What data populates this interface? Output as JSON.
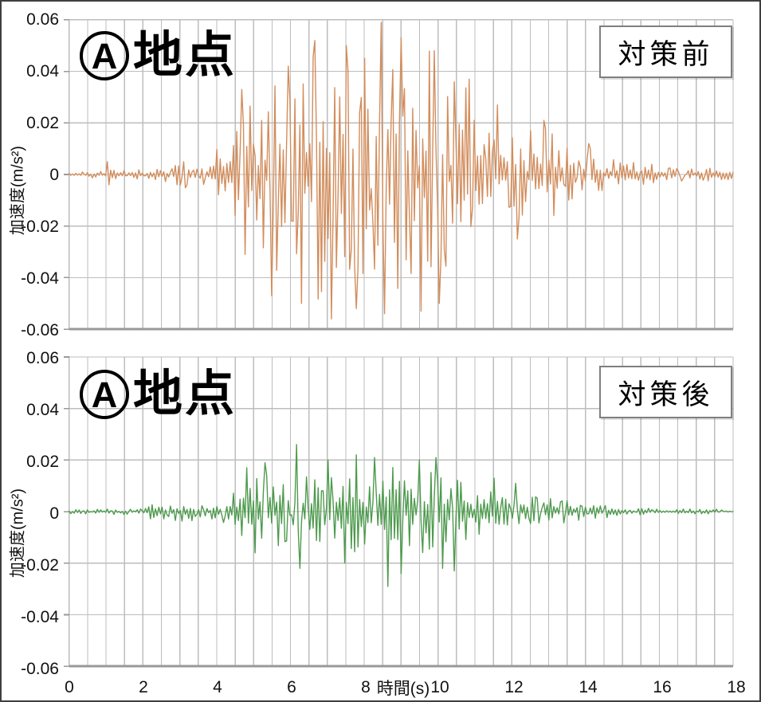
{
  "figure": {
    "background": "#ffffff",
    "frame_color": "#3f3f3f",
    "grid_color": "#bdbdbd",
    "axis_color": "#999999",
    "text_color": "#111111"
  },
  "chart_data": [
    {
      "id": "before",
      "type": "line",
      "subtype": "seismic-acceleration-waveform",
      "title_circle": "A",
      "title_text": "地点",
      "badge_label": "対策前",
      "series_color": "#d28d5c",
      "ylabel": "加速度(m/s²)",
      "xlim": [
        0,
        18
      ],
      "ylim": [
        -0.06,
        0.06
      ],
      "x_grid_step": 0.5,
      "y_grid_step": 0.02,
      "y_tick_labels": [
        "0.06",
        "0.04",
        "0.02",
        "0",
        "-0.02",
        "-0.04",
        "-0.06"
      ],
      "peak_positive": 0.059,
      "peak_positive_time": 8.45,
      "peak_negative": -0.056,
      "peak_negative_time": 7.1,
      "seed": 20231,
      "envelope": [
        [
          0,
          0.0012
        ],
        [
          0.9,
          0.0015
        ],
        [
          1.1,
          0.002
        ],
        [
          1.6,
          0.0018
        ],
        [
          2.2,
          0.0025
        ],
        [
          2.7,
          0.004
        ],
        [
          3.2,
          0.0055
        ],
        [
          3.7,
          0.0075
        ],
        [
          4.1,
          0.011
        ],
        [
          4.45,
          0.018
        ],
        [
          4.75,
          0.03
        ],
        [
          5.0,
          0.032
        ],
        [
          5.3,
          0.03
        ],
        [
          5.6,
          0.038
        ],
        [
          5.9,
          0.036
        ],
        [
          6.2,
          0.044
        ],
        [
          6.5,
          0.047
        ],
        [
          6.8,
          0.05
        ],
        [
          7.1,
          0.046
        ],
        [
          7.4,
          0.044
        ],
        [
          7.7,
          0.048
        ],
        [
          8.0,
          0.045
        ],
        [
          8.3,
          0.05
        ],
        [
          8.5,
          0.054
        ],
        [
          8.8,
          0.047
        ],
        [
          9.1,
          0.051
        ],
        [
          9.4,
          0.046
        ],
        [
          9.7,
          0.049
        ],
        [
          10.0,
          0.045
        ],
        [
          10.3,
          0.038
        ],
        [
          10.6,
          0.034
        ],
        [
          10.9,
          0.036
        ],
        [
          11.2,
          0.029
        ],
        [
          11.5,
          0.024
        ],
        [
          11.8,
          0.026
        ],
        [
          12.1,
          0.021
        ],
        [
          12.5,
          0.017
        ],
        [
          12.9,
          0.02
        ],
        [
          13.3,
          0.014
        ],
        [
          13.7,
          0.012
        ],
        [
          14.1,
          0.011
        ],
        [
          14.5,
          0.008
        ],
        [
          14.9,
          0.006
        ],
        [
          15.3,
          0.005
        ],
        [
          15.7,
          0.0045
        ],
        [
          16.1,
          0.0035
        ],
        [
          16.6,
          0.003
        ],
        [
          17.1,
          0.0027
        ],
        [
          17.6,
          0.0022
        ],
        [
          18,
          0.002
        ]
      ],
      "spikes": [
        [
          1.03,
          0.005
        ],
        [
          1.07,
          -0.004
        ],
        [
          4.7,
          0.033
        ],
        [
          4.78,
          -0.031
        ],
        [
          5.5,
          -0.047
        ],
        [
          5.95,
          0.042
        ],
        [
          6.3,
          -0.05
        ],
        [
          6.65,
          0.052
        ],
        [
          7.1,
          -0.056
        ],
        [
          7.5,
          0.05
        ],
        [
          7.8,
          -0.052
        ],
        [
          8.45,
          0.059
        ],
        [
          8.55,
          -0.054
        ],
        [
          9.0,
          0.053
        ],
        [
          9.55,
          -0.053
        ],
        [
          9.9,
          0.048
        ],
        [
          10.05,
          -0.05
        ],
        [
          10.85,
          0.037
        ],
        [
          11.6,
          0.027
        ],
        [
          12.15,
          -0.025
        ],
        [
          12.85,
          0.021
        ],
        [
          14.1,
          0.012
        ]
      ]
    },
    {
      "id": "after",
      "type": "line",
      "subtype": "seismic-acceleration-waveform",
      "title_circle": "A",
      "title_text": "地点",
      "badge_label": "対策後",
      "series_color": "#4d9a4d",
      "ylabel": "加速度(m/s²)",
      "xlabel": "時間(s)",
      "x_tick_labels": [
        "0",
        "2",
        "4",
        "6",
        "8",
        "10",
        "12",
        "14",
        "16",
        "18"
      ],
      "xlim": [
        0,
        18
      ],
      "ylim": [
        -0.06,
        0.06
      ],
      "x_grid_step": 0.5,
      "y_grid_step": 0.02,
      "y_tick_labels": [
        "0.06",
        "0.04",
        "0.02",
        "0",
        "-0.02",
        "-0.04",
        "-0.06"
      ],
      "peak_positive": 0.026,
      "peak_positive_time": 6.15,
      "peak_negative": -0.029,
      "peak_negative_time": 8.6,
      "seed": 811,
      "envelope": [
        [
          0,
          0.0008
        ],
        [
          1.0,
          0.001
        ],
        [
          1.8,
          0.0014
        ],
        [
          2.2,
          0.0028
        ],
        [
          2.6,
          0.0032
        ],
        [
          3.0,
          0.0038
        ],
        [
          3.4,
          0.0042
        ],
        [
          3.8,
          0.003
        ],
        [
          4.2,
          0.0048
        ],
        [
          4.5,
          0.008
        ],
        [
          4.8,
          0.013
        ],
        [
          5.1,
          0.0145
        ],
        [
          5.4,
          0.0155
        ],
        [
          5.7,
          0.0135
        ],
        [
          6.0,
          0.017
        ],
        [
          6.2,
          0.019
        ],
        [
          6.5,
          0.0145
        ],
        [
          6.8,
          0.0155
        ],
        [
          7.1,
          0.016
        ],
        [
          7.4,
          0.0155
        ],
        [
          7.7,
          0.017
        ],
        [
          8.0,
          0.016
        ],
        [
          8.3,
          0.017
        ],
        [
          8.6,
          0.019
        ],
        [
          8.9,
          0.016
        ],
        [
          9.2,
          0.0155
        ],
        [
          9.5,
          0.017
        ],
        [
          9.8,
          0.0165
        ],
        [
          10.1,
          0.016
        ],
        [
          10.4,
          0.0135
        ],
        [
          10.7,
          0.0115
        ],
        [
          11.0,
          0.0105
        ],
        [
          11.3,
          0.0095
        ],
        [
          11.6,
          0.0085
        ],
        [
          12.0,
          0.0078
        ],
        [
          12.4,
          0.0068
        ],
        [
          12.8,
          0.0058
        ],
        [
          13.2,
          0.005
        ],
        [
          13.6,
          0.0044
        ],
        [
          14.0,
          0.004
        ],
        [
          14.4,
          0.0034
        ],
        [
          14.8,
          0.002
        ],
        [
          15.2,
          0.0014
        ],
        [
          15.6,
          0.0013
        ],
        [
          16.0,
          0.0012
        ],
        [
          16.4,
          0.0014
        ],
        [
          16.8,
          0.0012
        ],
        [
          17.2,
          0.001
        ],
        [
          18,
          0.0009
        ]
      ],
      "spikes": [
        [
          4.82,
          0.017
        ],
        [
          5.06,
          -0.016
        ],
        [
          5.3,
          0.019
        ],
        [
          6.15,
          0.026
        ],
        [
          6.27,
          -0.022
        ],
        [
          7.0,
          0.02
        ],
        [
          7.45,
          -0.02
        ],
        [
          7.8,
          0.022
        ],
        [
          8.3,
          0.021
        ],
        [
          8.62,
          -0.029
        ],
        [
          9.0,
          -0.024
        ],
        [
          9.5,
          0.02
        ],
        [
          9.95,
          0.021
        ],
        [
          10.12,
          -0.022
        ],
        [
          10.45,
          -0.023
        ],
        [
          11.5,
          0.013
        ],
        [
          12.1,
          0.011
        ]
      ]
    }
  ]
}
